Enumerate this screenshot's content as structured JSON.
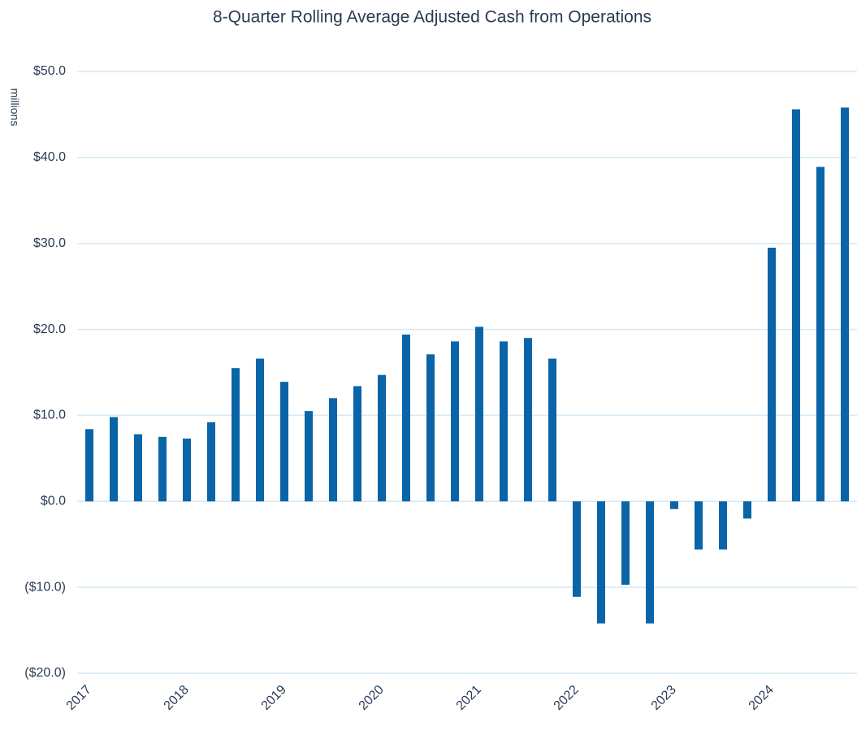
{
  "chart_data": {
    "type": "bar",
    "title": "8-Quarter Rolling Average Adjusted Cash from Operations",
    "y_label": "millions",
    "categories": [
      "2017",
      null,
      null,
      null,
      "2018",
      null,
      null,
      null,
      "2019",
      null,
      null,
      null,
      "2020",
      null,
      null,
      null,
      "2021",
      null,
      null,
      null,
      "2022",
      null,
      null,
      null,
      "2023",
      null,
      null,
      null,
      "2024",
      null,
      null,
      null
    ],
    "values": [
      8.4,
      9.8,
      7.8,
      7.5,
      7.3,
      9.2,
      15.5,
      16.6,
      13.9,
      10.5,
      12.0,
      13.4,
      14.7,
      19.4,
      17.1,
      18.6,
      20.3,
      18.6,
      19.0,
      16.6,
      -11.1,
      -14.2,
      -9.7,
      -14.2,
      -0.9,
      -5.6,
      -5.6,
      -2.0,
      29.5,
      45.6,
      38.9,
      45.8
    ],
    "color": "#0a64a8",
    "ylim": [
      -20,
      50
    ],
    "yticks": [
      {
        "value": -20,
        "label": "($20.0)"
      },
      {
        "value": -10,
        "label": "($10.0)"
      },
      {
        "value": 0,
        "label": "$0.0"
      },
      {
        "value": 10,
        "label": "$10.0"
      },
      {
        "value": 20,
        "label": "$20.0"
      },
      {
        "value": 30,
        "label": "$30.0"
      },
      {
        "value": 40,
        "label": "$40.0"
      },
      {
        "value": 50,
        "label": "$50.0"
      }
    ],
    "grid": true,
    "grid_color": "#d3e9f5"
  }
}
